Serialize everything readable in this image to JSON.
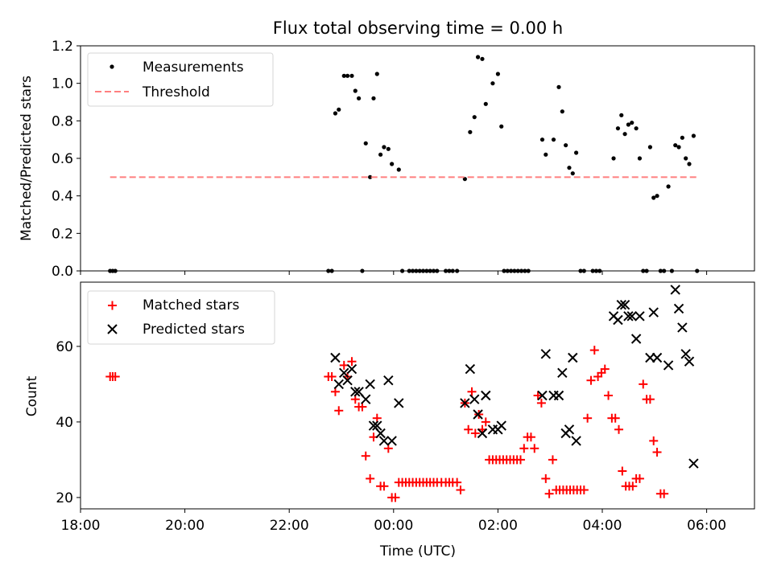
{
  "chart_data": [
    {
      "id": "top",
      "type": "scatter",
      "title": "Flux total observing time = 0.00 h",
      "xlabel": "",
      "ylabel": "Matched/Predicted stars",
      "xlim": [
        "18:00",
        "06:55"
      ],
      "ylim": [
        0,
        1.2
      ],
      "yticks": [
        "0.0",
        "0.2",
        "0.4",
        "0.6",
        "0.8",
        "1.0",
        "1.2"
      ],
      "ytick_values": [
        0,
        0.2,
        0.4,
        0.6,
        0.8,
        1.0,
        1.2
      ],
      "legend_position": "upper-left",
      "grid": false,
      "series": [
        {
          "name": "Measurements",
          "marker": "dot",
          "color": "#000000",
          "points": [
            [
              "18:34",
              0.0
            ],
            [
              "18:37",
              0.0
            ],
            [
              "18:40",
              0.0
            ],
            [
              "22:45",
              0.0
            ],
            [
              "22:49",
              0.0
            ],
            [
              "22:53",
              0.84
            ],
            [
              "22:57",
              0.86
            ],
            [
              "23:03",
              1.04
            ],
            [
              "23:07",
              1.04
            ],
            [
              "23:12",
              1.04
            ],
            [
              "23:16",
              0.96
            ],
            [
              "23:20",
              0.92
            ],
            [
              "23:24",
              0.0
            ],
            [
              "23:28",
              0.68
            ],
            [
              "23:33",
              0.5
            ],
            [
              "23:37",
              0.92
            ],
            [
              "23:41",
              1.05
            ],
            [
              "23:45",
              0.62
            ],
            [
              "23:49",
              0.66
            ],
            [
              "23:54",
              0.65
            ],
            [
              "23:58",
              0.57
            ],
            [
              "00:06",
              0.54
            ],
            [
              "00:10",
              0.0
            ],
            [
              "00:18",
              0.0
            ],
            [
              "00:22",
              0.0
            ],
            [
              "00:26",
              0.0
            ],
            [
              "00:30",
              0.0
            ],
            [
              "00:34",
              0.0
            ],
            [
              "00:38",
              0.0
            ],
            [
              "00:42",
              0.0
            ],
            [
              "00:46",
              0.0
            ],
            [
              "00:50",
              0.0
            ],
            [
              "01:00",
              0.0
            ],
            [
              "01:04",
              0.0
            ],
            [
              "01:08",
              0.0
            ],
            [
              "01:13",
              0.0
            ],
            [
              "01:22",
              0.49
            ],
            [
              "01:28",
              0.74
            ],
            [
              "01:33",
              0.82
            ],
            [
              "01:37",
              1.14
            ],
            [
              "01:42",
              1.13
            ],
            [
              "01:46",
              0.89
            ],
            [
              "01:54",
              1.0
            ],
            [
              "02:00",
              1.05
            ],
            [
              "02:04",
              0.77
            ],
            [
              "02:07",
              0.0
            ],
            [
              "02:11",
              0.0
            ],
            [
              "02:15",
              0.0
            ],
            [
              "02:19",
              0.0
            ],
            [
              "02:23",
              0.0
            ],
            [
              "02:27",
              0.0
            ],
            [
              "02:31",
              0.0
            ],
            [
              "02:35",
              0.0
            ],
            [
              "02:51",
              0.7
            ],
            [
              "02:55",
              0.62
            ],
            [
              "03:04",
              0.7
            ],
            [
              "03:10",
              0.98
            ],
            [
              "03:14",
              0.85
            ],
            [
              "03:18",
              0.67
            ],
            [
              "03:22",
              0.55
            ],
            [
              "03:26",
              0.52
            ],
            [
              "03:30",
              0.63
            ],
            [
              "03:35",
              0.0
            ],
            [
              "03:39",
              0.0
            ],
            [
              "03:49",
              0.0
            ],
            [
              "03:53",
              0.0
            ],
            [
              "03:57",
              0.0
            ],
            [
              "04:13",
              0.6
            ],
            [
              "04:18",
              0.76
            ],
            [
              "04:22",
              0.83
            ],
            [
              "04:26",
              0.73
            ],
            [
              "04:30",
              0.78
            ],
            [
              "04:34",
              0.79
            ],
            [
              "04:39",
              0.76
            ],
            [
              "04:43",
              0.6
            ],
            [
              "04:47",
              0.0
            ],
            [
              "04:51",
              0.0
            ],
            [
              "04:55",
              0.66
            ],
            [
              "04:59",
              0.39
            ],
            [
              "05:03",
              0.4
            ],
            [
              "05:07",
              0.0
            ],
            [
              "05:11",
              0.0
            ],
            [
              "05:16",
              0.45
            ],
            [
              "05:20",
              0.0
            ],
            [
              "05:24",
              0.67
            ],
            [
              "05:28",
              0.66
            ],
            [
              "05:32",
              0.71
            ],
            [
              "05:36",
              0.6
            ],
            [
              "05:40",
              0.57
            ],
            [
              "05:45",
              0.72
            ],
            [
              "05:49",
              0.0
            ]
          ]
        },
        {
          "name": "Threshold",
          "marker": "dashed-line",
          "color": "#ff7f7f",
          "points": [
            [
              "18:34",
              0.5
            ],
            [
              "05:50",
              0.5
            ]
          ]
        }
      ]
    },
    {
      "id": "bottom",
      "type": "scatter",
      "title": "",
      "xlabel": "Time (UTC)",
      "ylabel": "Count",
      "xlim": [
        "18:00",
        "06:55"
      ],
      "ylim": [
        17,
        77
      ],
      "xticks": [
        "18:00",
        "20:00",
        "22:00",
        "00:00",
        "02:00",
        "04:00",
        "06:00"
      ],
      "yticks": [
        "20",
        "40",
        "60"
      ],
      "ytick_values": [
        20,
        40,
        60
      ],
      "legend_position": "upper-left",
      "grid": false,
      "series": [
        {
          "name": "Matched stars",
          "marker": "plus",
          "color": "#ff0000",
          "points": [
            [
              "18:34",
              52
            ],
            [
              "18:37",
              52
            ],
            [
              "18:40",
              52
            ],
            [
              "22:45",
              52
            ],
            [
              "22:49",
              52
            ],
            [
              "22:53",
              48
            ],
            [
              "22:57",
              43
            ],
            [
              "23:03",
              55
            ],
            [
              "23:07",
              52
            ],
            [
              "23:12",
              56
            ],
            [
              "23:16",
              46
            ],
            [
              "23:20",
              44
            ],
            [
              "23:24",
              44
            ],
            [
              "23:28",
              31
            ],
            [
              "23:33",
              25
            ],
            [
              "23:37",
              36
            ],
            [
              "23:41",
              41
            ],
            [
              "23:45",
              23
            ],
            [
              "23:49",
              23
            ],
            [
              "23:54",
              33
            ],
            [
              "23:58",
              20
            ],
            [
              "00:02",
              20
            ],
            [
              "00:06",
              24
            ],
            [
              "00:10",
              24
            ],
            [
              "00:14",
              24
            ],
            [
              "00:18",
              24
            ],
            [
              "00:22",
              24
            ],
            [
              "00:26",
              24
            ],
            [
              "00:30",
              24
            ],
            [
              "00:34",
              24
            ],
            [
              "00:38",
              24
            ],
            [
              "00:42",
              24
            ],
            [
              "00:46",
              24
            ],
            [
              "00:50",
              24
            ],
            [
              "00:55",
              24
            ],
            [
              "01:00",
              24
            ],
            [
              "01:04",
              24
            ],
            [
              "01:08",
              24
            ],
            [
              "01:13",
              24
            ],
            [
              "01:17",
              22
            ],
            [
              "01:22",
              45
            ],
            [
              "01:26",
              38
            ],
            [
              "01:30",
              48
            ],
            [
              "01:34",
              37
            ],
            [
              "01:38",
              42
            ],
            [
              "01:42",
              38
            ],
            [
              "01:46",
              40
            ],
            [
              "01:50",
              30
            ],
            [
              "01:54",
              30
            ],
            [
              "01:58",
              30
            ],
            [
              "02:02",
              30
            ],
            [
              "02:06",
              30
            ],
            [
              "02:10",
              30
            ],
            [
              "02:14",
              30
            ],
            [
              "02:18",
              30
            ],
            [
              "02:22",
              30
            ],
            [
              "02:26",
              30
            ],
            [
              "02:30",
              33
            ],
            [
              "02:34",
              36
            ],
            [
              "02:38",
              36
            ],
            [
              "02:42",
              33
            ],
            [
              "02:46",
              47
            ],
            [
              "02:50",
              45
            ],
            [
              "02:55",
              25
            ],
            [
              "02:59",
              21
            ],
            [
              "03:03",
              30
            ],
            [
              "03:07",
              22
            ],
            [
              "03:11",
              22
            ],
            [
              "03:15",
              22
            ],
            [
              "03:19",
              22
            ],
            [
              "03:23",
              22
            ],
            [
              "03:27",
              22
            ],
            [
              "03:31",
              22
            ],
            [
              "03:35",
              22
            ],
            [
              "03:39",
              22
            ],
            [
              "03:43",
              41
            ],
            [
              "03:47",
              51
            ],
            [
              "03:51",
              59
            ],
            [
              "03:55",
              52
            ],
            [
              "03:59",
              53
            ],
            [
              "04:03",
              54
            ],
            [
              "04:07",
              47
            ],
            [
              "04:11",
              41
            ],
            [
              "04:15",
              41
            ],
            [
              "04:19",
              38
            ],
            [
              "04:23",
              27
            ],
            [
              "04:27",
              23
            ],
            [
              "04:31",
              23
            ],
            [
              "04:35",
              23
            ],
            [
              "04:39",
              25
            ],
            [
              "04:43",
              25
            ],
            [
              "04:47",
              50
            ],
            [
              "04:51",
              46
            ],
            [
              "04:55",
              46
            ],
            [
              "04:59",
              35
            ],
            [
              "05:03",
              32
            ],
            [
              "05:07",
              21
            ],
            [
              "05:11",
              21
            ]
          ]
        },
        {
          "name": "Predicted stars",
          "marker": "x",
          "color": "#000000",
          "points": [
            [
              "22:53",
              57
            ],
            [
              "22:57",
              50
            ],
            [
              "23:03",
              53
            ],
            [
              "23:07",
              51
            ],
            [
              "23:12",
              54
            ],
            [
              "23:16",
              48
            ],
            [
              "23:20",
              48
            ],
            [
              "23:28",
              46
            ],
            [
              "23:33",
              50
            ],
            [
              "23:37",
              39
            ],
            [
              "23:41",
              39
            ],
            [
              "23:45",
              37
            ],
            [
              "23:49",
              35
            ],
            [
              "23:54",
              51
            ],
            [
              "23:58",
              35
            ],
            [
              "00:06",
              45
            ],
            [
              "01:22",
              45
            ],
            [
              "01:28",
              54
            ],
            [
              "01:33",
              46
            ],
            [
              "01:37",
              42
            ],
            [
              "01:42",
              37
            ],
            [
              "01:46",
              47
            ],
            [
              "01:54",
              38
            ],
            [
              "02:00",
              38
            ],
            [
              "02:04",
              39
            ],
            [
              "02:51",
              47
            ],
            [
              "02:55",
              58
            ],
            [
              "03:04",
              47
            ],
            [
              "03:10",
              47
            ],
            [
              "03:14",
              53
            ],
            [
              "03:18",
              37
            ],
            [
              "03:22",
              38
            ],
            [
              "03:26",
              57
            ],
            [
              "03:30",
              35
            ],
            [
              "04:13",
              68
            ],
            [
              "04:18",
              67
            ],
            [
              "04:22",
              71
            ],
            [
              "04:26",
              71
            ],
            [
              "04:30",
              68
            ],
            [
              "04:34",
              68
            ],
            [
              "04:39",
              62
            ],
            [
              "04:43",
              68
            ],
            [
              "04:55",
              57
            ],
            [
              "04:59",
              69
            ],
            [
              "05:03",
              57
            ],
            [
              "05:16",
              55
            ],
            [
              "05:24",
              75
            ],
            [
              "05:28",
              70
            ],
            [
              "05:32",
              65
            ],
            [
              "05:36",
              58
            ],
            [
              "05:40",
              56
            ],
            [
              "05:45",
              29
            ]
          ]
        }
      ]
    }
  ]
}
